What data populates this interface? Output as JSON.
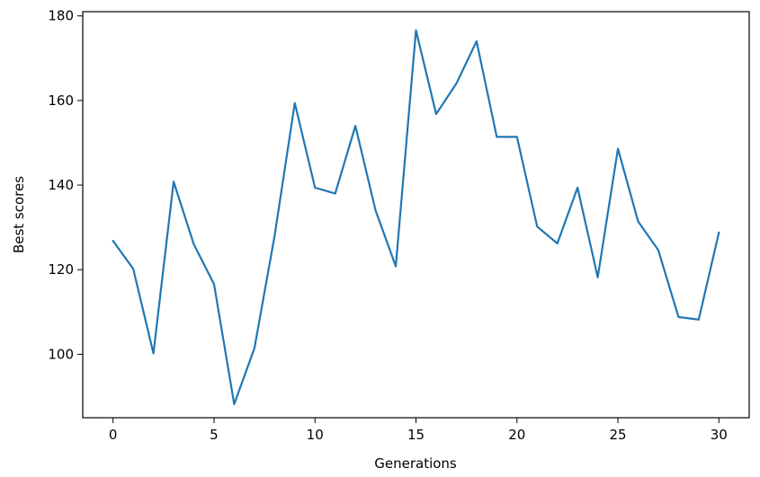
{
  "chart_data": {
    "type": "line",
    "xlabel": "Generations",
    "ylabel": "Best scores",
    "xlim": [
      -1.5,
      31.5
    ],
    "ylim": [
      85,
      181
    ],
    "xticks": [
      0,
      5,
      10,
      15,
      20,
      25,
      30
    ],
    "yticks": [
      100,
      120,
      140,
      160,
      180
    ],
    "xtick_labels": [
      "0",
      "5",
      "10",
      "15",
      "20",
      "25",
      "30"
    ],
    "ytick_labels": [
      "100",
      "120",
      "140",
      "160",
      "180"
    ],
    "grid": false,
    "series": [
      {
        "color": "#1f77b4",
        "x": [
          0,
          1,
          2,
          3,
          4,
          5,
          6,
          7,
          8,
          9,
          10,
          11,
          12,
          13,
          14,
          15,
          16,
          17,
          18,
          19,
          20,
          21,
          22,
          23,
          24,
          25,
          26,
          27,
          28,
          29,
          30
        ],
        "y": [
          126.8,
          120.2,
          100.2,
          140.8,
          126.0,
          116.6,
          88.2,
          101.4,
          128.0,
          159.4,
          139.4,
          138.0,
          154.0,
          134.0,
          120.8,
          176.6,
          156.8,
          164.0,
          174.0,
          151.4,
          151.4,
          130.2,
          126.2,
          139.4,
          118.2,
          148.6,
          131.4,
          124.6,
          108.8,
          108.2,
          128.8
        ]
      }
    ]
  }
}
